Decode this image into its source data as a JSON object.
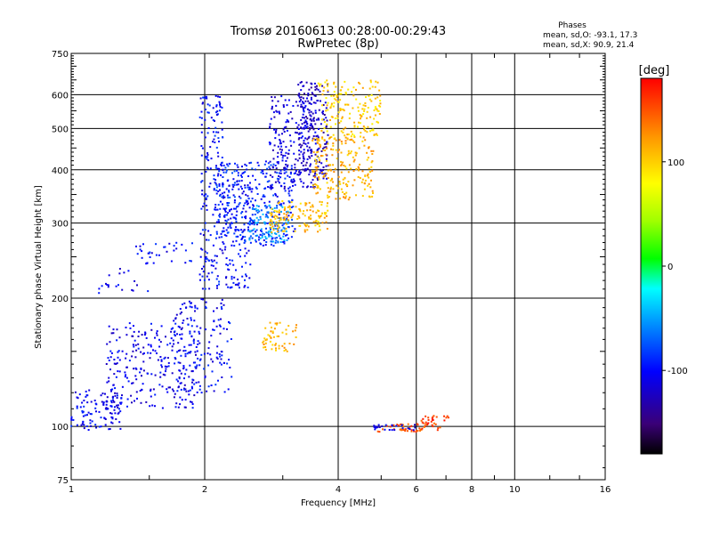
{
  "chart_data": {
    "type": "scatter",
    "title": "Tromsø 20160613 00:28:00-00:29:43",
    "subtitle": "RwPretec (8p)",
    "xlabel": "Frequency [MHz]",
    "ylabel": "Stationary phase Virtual Height [km]",
    "x_scale": "log",
    "y_scale": "log",
    "xlim": [
      1,
      16
    ],
    "ylim": [
      75,
      750
    ],
    "x_ticks": [
      1,
      2,
      4,
      6,
      8,
      10,
      16
    ],
    "x_tick_labels": [
      "1",
      "2",
      "4",
      "6",
      "8",
      "10",
      "16"
    ],
    "y_ticks": [
      75,
      100,
      200,
      300,
      400,
      500,
      600,
      750
    ],
    "y_tick_labels": [
      "75",
      "100",
      "200",
      "300",
      "400",
      "500",
      "600",
      "750"
    ],
    "grid": true,
    "annotation": {
      "title": "Phases",
      "line_o": "mean, sd,O: -93.1, 17.3",
      "line_x": "mean, sd,X:  90.9, 21.4"
    },
    "colorbar": {
      "label": "[deg]",
      "range": [
        -180,
        180
      ],
      "ticks": [
        100,
        0,
        -100
      ],
      "tick_labels": [
        "100",
        "0",
        "-100"
      ]
    },
    "clusters": [
      {
        "f": [
          1.0,
          1.3
        ],
        "h": [
          98,
          122
        ],
        "phase": -105,
        "n": 110
      },
      {
        "f": [
          1.2,
          1.95
        ],
        "h": [
          110,
          175
        ],
        "phase": -108,
        "n": 260
      },
      {
        "f": [
          1.7,
          2.3
        ],
        "h": [
          120,
          200
        ],
        "phase": -102,
        "n": 150
      },
      {
        "f": [
          1.95,
          2.55
        ],
        "h": [
          210,
          380
        ],
        "phase": -100,
        "n": 230
      },
      {
        "f": [
          1.95,
          2.2
        ],
        "h": [
          380,
          600
        ],
        "phase": -100,
        "n": 90
      },
      {
        "f": [
          2.1,
          3.2
        ],
        "h": [
          265,
          420
        ],
        "phase": -92,
        "n": 300
      },
      {
        "f": [
          2.5,
          3.1
        ],
        "h": [
          270,
          330
        ],
        "phase": -55,
        "n": 110
      },
      {
        "f": [
          2.8,
          3.6
        ],
        "h": [
          360,
          600
        ],
        "phase": -112,
        "n": 230
      },
      {
        "f": [
          3.25,
          3.8
        ],
        "h": [
          380,
          650
        ],
        "phase": -125,
        "n": 170
      },
      {
        "f": [
          2.8,
          3.8
        ],
        "h": [
          285,
          340
        ],
        "phase": 108,
        "n": 130
      },
      {
        "f": [
          3.5,
          4.8
        ],
        "h": [
          340,
          480
        ],
        "phase": 112,
        "n": 220
      },
      {
        "f": [
          3.6,
          5.0
        ],
        "h": [
          480,
          650
        ],
        "phase": 100,
        "n": 170
      },
      {
        "f": [
          2.7,
          3.25
        ],
        "h": [
          150,
          178
        ],
        "phase": 112,
        "n": 55
      },
      {
        "f": [
          1.4,
          1.9
        ],
        "h": [
          240,
          270
        ],
        "phase": -100,
        "n": 35
      },
      {
        "f": [
          1.15,
          1.5
        ],
        "h": [
          205,
          235
        ],
        "phase": -105,
        "n": 20
      },
      {
        "f": [
          4.9,
          6.8
        ],
        "h": [
          97,
          102
        ],
        "phase": 150,
        "n": 50
      },
      {
        "f": [
          4.8,
          6.0
        ],
        "h": [
          98,
          101
        ],
        "phase": -110,
        "n": 25
      },
      {
        "f": [
          6.1,
          7.1
        ],
        "h": [
          101,
          106
        ],
        "phase": 160,
        "n": 22
      }
    ]
  }
}
